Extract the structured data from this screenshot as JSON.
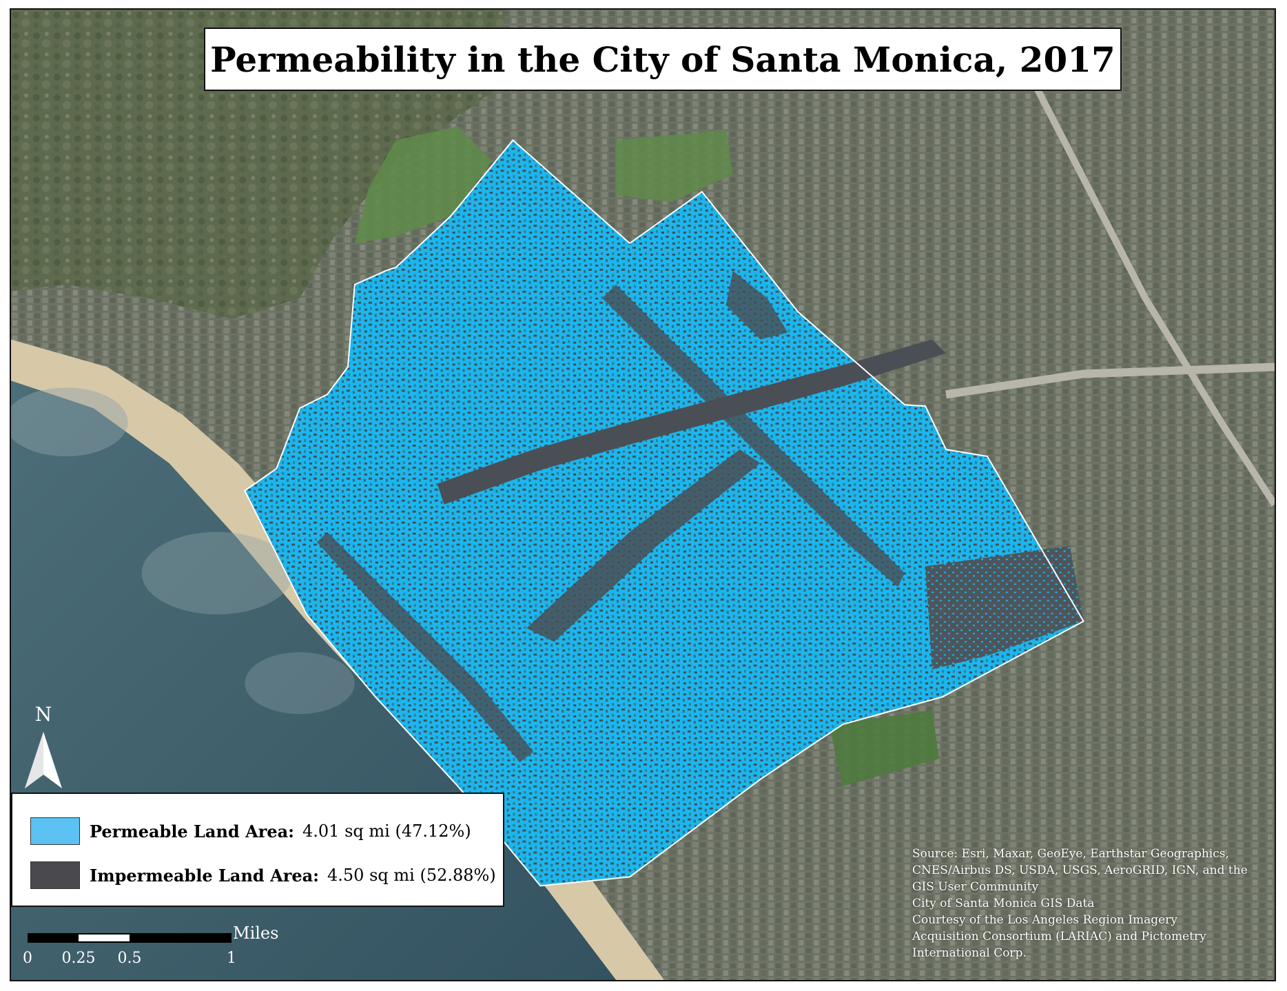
{
  "title": "Permeability in the City of Santa Monica, 2017",
  "colors": {
    "permeable": "#1cb6ec",
    "impermeable": "#4a4a4e",
    "ocean": "#3d5e6a",
    "beach": "#d7c8a8",
    "land": "#6e7566",
    "golf": "#5f8a4a"
  },
  "north_arrow": {
    "label": "N"
  },
  "legend": {
    "items": [
      {
        "label": "Permeable Land Area:",
        "value": "4.01 sq mi (47.12%)",
        "color": "#5bc2f2"
      },
      {
        "label": "Impermeable Land Area:",
        "value": "4.50 sq mi (52.88%)",
        "color": "#4a4a4e"
      }
    ]
  },
  "scale_bar": {
    "unit": "Miles",
    "ticks": [
      "0",
      "0.25",
      "0.5",
      "1"
    ]
  },
  "source": {
    "lines": [
      "Source: Esri, Maxar, GeoEye, Earthstar Geographics,",
      "CNES/Airbus DS, USDA, USGS, AeroGRID, IGN, and the",
      "GIS User Community",
      "City of Santa Monica GIS Data",
      "Courtesy of the Los Angeles Region Imagery",
      "Acquisition Consortium (LARIAC) and Pictometry",
      "International Corp."
    ]
  },
  "layers": [
    {
      "name": "permeable-land-area"
    },
    {
      "name": "impermeable-land-area"
    },
    {
      "name": "city-boundary"
    },
    {
      "name": "imagery-basemap"
    }
  ]
}
